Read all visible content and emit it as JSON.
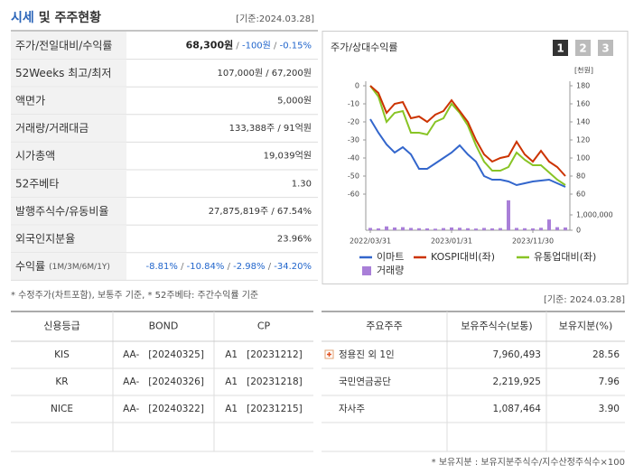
{
  "quote": {
    "title_main": "시세",
    "title_rest": "및 주주현황",
    "date": "[기준:2024.03.28]",
    "rows": [
      {
        "label": "주가/전일대비/수익률",
        "value": [
          {
            "text": "68,300원",
            "color": "#222222",
            "bold": true
          },
          {
            "text": " / ",
            "color": "#777777"
          },
          {
            "text": "-100원",
            "color": "#2266cc"
          },
          {
            "text": " / ",
            "color": "#777777"
          },
          {
            "text": "-0.15%",
            "color": "#2266cc"
          }
        ]
      },
      {
        "label": "52Weeks 최고/최저",
        "value": "107,000원 / 67,200원"
      },
      {
        "label": "액면가",
        "value": "5,000원"
      },
      {
        "label": "거래량/거래대금",
        "value": "133,388주 / 91억원"
      },
      {
        "label": "시가총액",
        "value": "19,039억원"
      },
      {
        "label": "52주베타",
        "value": "1.30"
      },
      {
        "label": "발행주식수/유동비율",
        "value": "27,875,819주 / 67.54%"
      },
      {
        "label": "외국인지분율",
        "value": "23.96%"
      },
      {
        "label": "수익률",
        "label_note": "(1M/3M/6M/1Y)",
        "value": [
          {
            "text": "-8.81%",
            "color": "#2266cc"
          },
          {
            "text": " / ",
            "color": "#777777"
          },
          {
            "text": "-10.84%",
            "color": "#2266cc"
          },
          {
            "text": " / ",
            "color": "#777777"
          },
          {
            "text": "-2.98%",
            "color": "#2266cc"
          },
          {
            "text": " / ",
            "color": "#777777"
          },
          {
            "text": "-34.20%",
            "color": "#2266cc"
          }
        ]
      }
    ],
    "footnote": "* 수정주가(차트포함), 보통주 기준, * 52주베타: 주간수익률 기준",
    "date2": "[기준: 2024.03.28]"
  },
  "chart_data": {
    "type": "line",
    "title": "주가/상대수익률",
    "tabs": [
      "1",
      "2",
      "3"
    ],
    "y2_unit": "[천원]",
    "categories": [
      "2022/03/31",
      null,
      null,
      null,
      null,
      null,
      null,
      null,
      null,
      null,
      "2023/01/31",
      null,
      null,
      null,
      null,
      null,
      null,
      null,
      null,
      null,
      "2023/11/30",
      null,
      null,
      null,
      null
    ],
    "ylim": [
      -60,
      0
    ],
    "yticks": [
      0,
      -10,
      -20,
      -30,
      -40,
      -50,
      -60
    ],
    "y2lim": [
      60,
      180
    ],
    "y2ticks": [
      180,
      160,
      140,
      120,
      100,
      80,
      60
    ],
    "volume_lim": [
      0,
      2000000
    ],
    "volume_ticks": [
      {
        "value": 1000000,
        "label": "1,000,000"
      },
      0
    ],
    "series": [
      {
        "name": "이마트",
        "color": "#3366cc",
        "axis": "y2",
        "values": [
          143,
          128,
          115,
          106,
          112,
          104,
          88,
          88,
          94,
          100,
          106,
          114,
          104,
          96,
          80,
          76,
          76,
          74,
          70,
          72,
          74,
          75,
          76,
          72,
          68
        ]
      },
      {
        "name": "KOSPI대비(좌)",
        "color": "#cc3300",
        "axis": "y",
        "values": [
          0,
          -4,
          -15,
          -10,
          -9,
          -18,
          -17,
          -20,
          -16,
          -14,
          -8,
          -14,
          -20,
          -30,
          -38,
          -42,
          -40,
          -39,
          -31,
          -38,
          -42,
          -36,
          -42,
          -45,
          -50
        ]
      },
      {
        "name": "유통업대비(좌)",
        "color": "#88c425",
        "axis": "y",
        "values": [
          0,
          -6,
          -20,
          -15,
          -14,
          -26,
          -26,
          -27,
          -20,
          -18,
          -10,
          -15,
          -22,
          -33,
          -42,
          -47,
          -47,
          -45,
          -37,
          -41,
          -44,
          -44,
          -48,
          -52,
          -55
        ]
      },
      {
        "name": "거래량",
        "color": "#a97fd8",
        "axis": "volume",
        "values": [
          150000,
          120000,
          250000,
          180000,
          200000,
          150000,
          130000,
          120000,
          100000,
          140000,
          180000,
          160000,
          130000,
          110000,
          150000,
          120000,
          140000,
          1950000,
          150000,
          130000,
          120000,
          160000,
          700000,
          200000,
          180000
        ]
      }
    ]
  },
  "credit": {
    "headers": [
      "신용등급",
      "BOND",
      "CP"
    ],
    "rows": [
      [
        "KIS",
        "AA-   [20240325]",
        "A1   [20231212]"
      ],
      [
        "KR",
        "AA-   [20240326]",
        "A1   [20231218]"
      ],
      [
        "NICE",
        "AA-   [20240322]",
        "A1   [20231215]"
      ]
    ]
  },
  "holders": {
    "headers": [
      "주요주주",
      "보유주식수(보통)",
      "보유지분(%)"
    ],
    "rows": [
      [
        "정용진 외 1인",
        "7,960,493",
        "28.56"
      ],
      [
        "국민연금공단",
        "2,219,925",
        "7.96"
      ],
      [
        "자사주",
        "1,087,464",
        "3.90"
      ]
    ],
    "footnote": "* 보유지분 : 보유지분주식수/지수산정주식수×100"
  }
}
